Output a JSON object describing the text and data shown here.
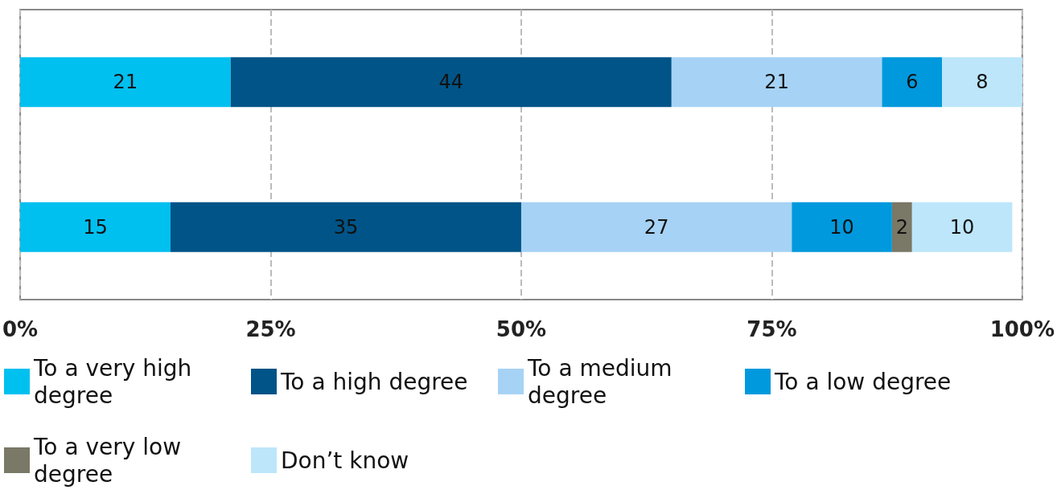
{
  "chart_data": {
    "type": "bar",
    "orientation": "horizontal",
    "stacked": true,
    "categories": [
      null,
      null
    ],
    "series": [
      {
        "name": "To a very high degree",
        "color": "#00c0f0",
        "values": [
          21,
          15
        ]
      },
      {
        "name": "To a high degree",
        "color": "#005487",
        "values": [
          44,
          35
        ]
      },
      {
        "name": "To a medium degree",
        "color": "#a6d2f5",
        "values": [
          21,
          27
        ]
      },
      {
        "name": "To a low degree",
        "color": "#0099dd",
        "values": [
          6,
          10
        ]
      },
      {
        "name": "To a very low degree",
        "color": "#7a7866",
        "values": [
          null,
          2
        ]
      },
      {
        "name": "Don’t know",
        "color": "#bde6fa",
        "values": [
          8,
          10
        ]
      }
    ],
    "xlim": [
      0,
      100
    ],
    "xticks": [
      {
        "value": 0,
        "label": "0%"
      },
      {
        "value": 25,
        "label": "25%"
      },
      {
        "value": 50,
        "label": "50%"
      },
      {
        "value": 75,
        "label": "75%"
      },
      {
        "value": 100,
        "label": "100%"
      }
    ],
    "grid": "x",
    "legend": "bottom",
    "data_labels": true
  }
}
